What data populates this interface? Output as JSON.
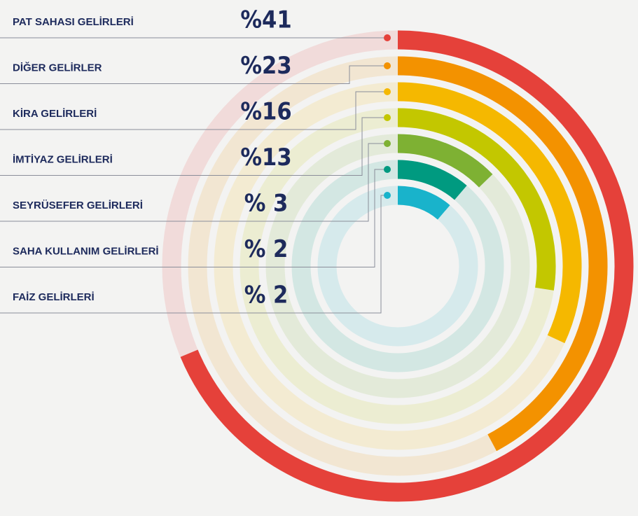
{
  "chart_data": {
    "type": "radial_bar",
    "categories": [
      "PAT SAHASI GELİRLERİ",
      "DİĞER GELİRLER",
      "KİRA GELİRLERİ",
      "İMTİYAZ GELİRLERİ",
      "SEYRÜSEFER GELİRLERİ",
      "SAHA KULLANIM GELİRLERİ",
      "FAİZ GELİRLERİ"
    ],
    "values": [
      41,
      23,
      16,
      13,
      3,
      2,
      2
    ],
    "value_labels": [
      "%41",
      "%23",
      "%16",
      "%13",
      "% 3",
      "% 2",
      "% 2"
    ],
    "colors": [
      "#e5413a",
      "#f39200",
      "#f5b800",
      "#c3c700",
      "#7eb133",
      "#009a80",
      "#19b3cb"
    ]
  }
}
